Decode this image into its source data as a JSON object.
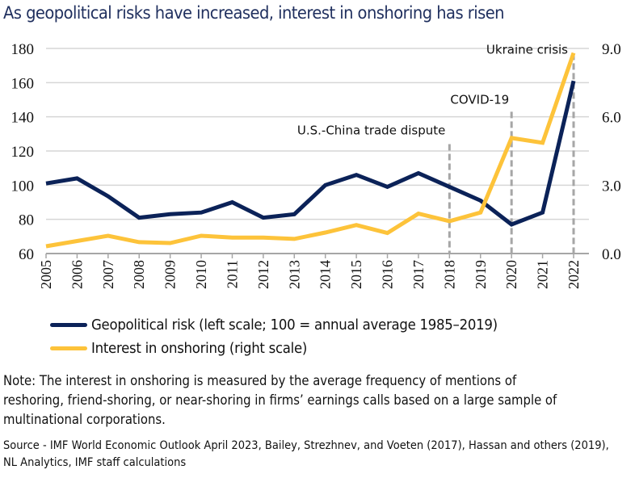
{
  "title": "As geopolitical risks have increased, interest in onshoring has risen",
  "chart_data": {
    "type": "line",
    "title": "As geopolitical risks have increased, interest in onshoring has risen",
    "xlabel": "",
    "ylabel": "",
    "x": [
      2005,
      2006,
      2007,
      2008,
      2009,
      2010,
      2011,
      2012,
      2013,
      2014,
      2015,
      2016,
      2017,
      2018,
      2019,
      2020,
      2021,
      2022
    ],
    "x_tick_labels": [
      "2005",
      "2006",
      "2007",
      "2008",
      "2009",
      "2010",
      "2011",
      "2012",
      "2013",
      "2014",
      "2015",
      "2016",
      "2017",
      "2018",
      "2019",
      "2020",
      "2021",
      "2022"
    ],
    "ylim_left": [
      60,
      180
    ],
    "y_left_ticks": [
      "60",
      "80",
      "100",
      "120",
      "140",
      "160",
      "180"
    ],
    "y_left_tick_values": [
      60,
      80,
      100,
      120,
      140,
      160,
      180
    ],
    "ylim_right": [
      0,
      9
    ],
    "y_right_ticks": [
      "0.0",
      "3.0",
      "6.0",
      "9.0"
    ],
    "y_right_tick_values": [
      0,
      3,
      6,
      9
    ],
    "grid": true,
    "legend_position": "bottom",
    "series": [
      {
        "name": "Geopolitical risk (left scale; 100 = annual average 1985–2019)",
        "axis": "left",
        "color": "#0b2258",
        "values": [
          101,
          104,
          93.5,
          81,
          83,
          84,
          90,
          81,
          83,
          100,
          106,
          99,
          107,
          99,
          91,
          77,
          84,
          161
        ]
      },
      {
        "name": "Interest in onshoring (right scale)",
        "axis": "right",
        "color": "#fdc33a",
        "values": [
          0.32,
          0.55,
          0.78,
          0.5,
          0.46,
          0.78,
          0.7,
          0.7,
          0.64,
          0.92,
          1.25,
          0.9,
          1.75,
          1.42,
          1.8,
          5.07,
          4.86,
          8.8
        ]
      }
    ],
    "annotations": [
      {
        "label": "U.S.-China trade dispute",
        "x": 2018,
        "left_value": 124
      },
      {
        "label": "COVID-19",
        "x": 2020,
        "left_value": 143
      },
      {
        "label": "Ukraine crisis",
        "x": 2022,
        "left_value": 177
      }
    ]
  },
  "note": "Note: The interest in onshoring is measured by the average frequency of mentions of reshoring, friend-shoring, or near-shoring in firms’ earnings calls based on a large sample of multinational corporations.",
  "source": "Source - IMF World Economic Outlook April 2023, Bailey, Strezhnev, and Voeten (2017), Hassan and others (2019), NL Analytics, IMF staff calculations"
}
